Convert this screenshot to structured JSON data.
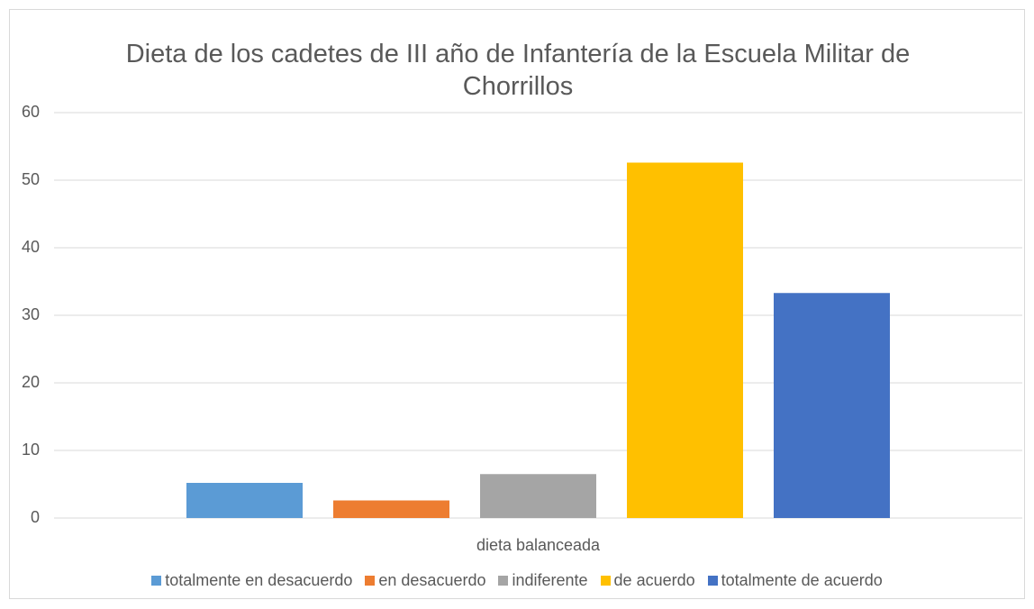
{
  "chart_data": {
    "type": "bar",
    "title": "Dieta de los cadetes de III año de Infantería de la Escuela Militar de Chorrillos",
    "categories": [
      "dieta balanceada"
    ],
    "series": [
      {
        "name": "totalmente en desacuerdo",
        "color": "#5b9bd5",
        "values": [
          5.2
        ]
      },
      {
        "name": "en desacuerdo",
        "color": "#ed7d31",
        "values": [
          2.6
        ]
      },
      {
        "name": "indiferente",
        "color": "#a5a5a5",
        "values": [
          6.5
        ]
      },
      {
        "name": "de acuerdo",
        "color": "#ffc000",
        "values": [
          52.6
        ]
      },
      {
        "name": "totalmente de acuerdo",
        "color": "#4472c4",
        "values": [
          33.3
        ]
      }
    ],
    "ylim": [
      0,
      60
    ],
    "yticks": [
      0,
      10,
      20,
      30,
      40,
      50,
      60
    ],
    "grid": true,
    "legend": "bottom"
  }
}
